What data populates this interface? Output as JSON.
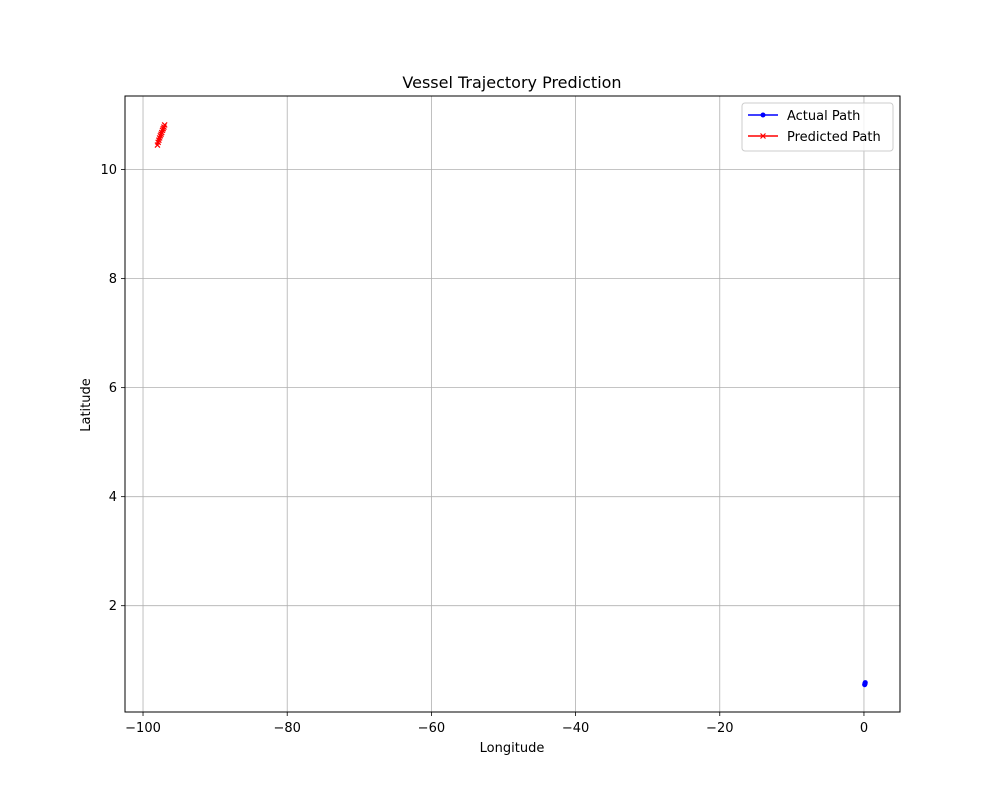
{
  "chart_data": {
    "type": "line",
    "title": "Vessel Trajectory Prediction",
    "xlabel": "Longitude",
    "ylabel": "Latitude",
    "xlim": [
      -102.5,
      5
    ],
    "ylim": [
      0.05,
      11.35
    ],
    "xticks": [
      -100,
      -80,
      -60,
      -40,
      -20,
      0
    ],
    "xtick_labels": [
      "−100",
      "−80",
      "−60",
      "−40",
      "−20",
      "0"
    ],
    "yticks": [
      2,
      4,
      6,
      8,
      10
    ],
    "ytick_labels": [
      "2",
      "4",
      "6",
      "8",
      "10"
    ],
    "grid": true,
    "legend": {
      "position": "top-right"
    },
    "series": [
      {
        "name": "Actual Path",
        "color": "#0000ff",
        "marker": "circle",
        "x": [
          0.1,
          0.12,
          0.14,
          0.16,
          0.18
        ],
        "y": [
          0.55,
          0.56,
          0.57,
          0.58,
          0.59
        ]
      },
      {
        "name": "Predicted Path",
        "color": "#ff0000",
        "marker": "x",
        "x": [
          -98.0,
          -97.9,
          -97.8,
          -97.7,
          -97.6,
          -97.5,
          -97.4,
          -97.3,
          -97.2,
          -97.1,
          -97.0
        ],
        "y": [
          10.45,
          10.5,
          10.54,
          10.58,
          10.62,
          10.65,
          10.68,
          10.72,
          10.75,
          10.78,
          10.82
        ]
      }
    ]
  }
}
